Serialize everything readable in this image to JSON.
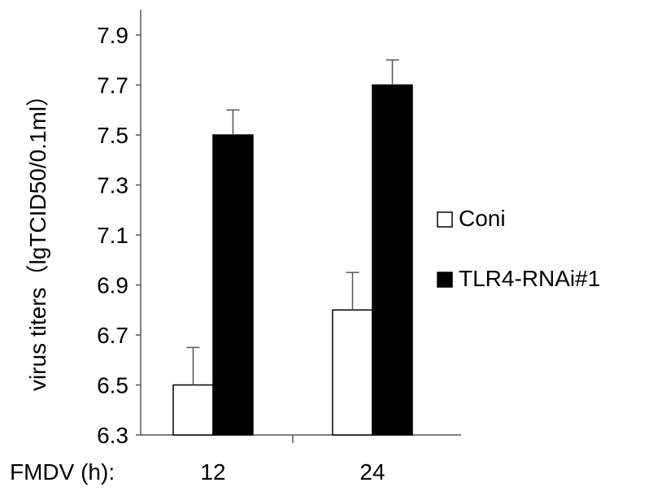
{
  "chart_data": {
    "type": "bar",
    "categories": [
      "12",
      "24"
    ],
    "series": [
      {
        "name": "Coni",
        "values": [
          6.5,
          6.8
        ],
        "errors": [
          0.15,
          0.15
        ],
        "color": "#ffffff"
      },
      {
        "name": "TLR4-RNAi#1",
        "values": [
          7.5,
          7.7
        ],
        "errors": [
          0.1,
          0.1
        ],
        "color": "#000000"
      }
    ],
    "title": "",
    "xlabel": "FMDV (h):",
    "ylabel": "virus titers（lgTCID50/0.1ml）",
    "ylim": [
      6.3,
      7.9
    ],
    "yticks": [
      "6.3",
      "6.5",
      "6.7",
      "6.9",
      "7.1",
      "7.3",
      "7.5",
      "7.7",
      "7.9"
    ],
    "grid": false,
    "legend_position": "right"
  }
}
